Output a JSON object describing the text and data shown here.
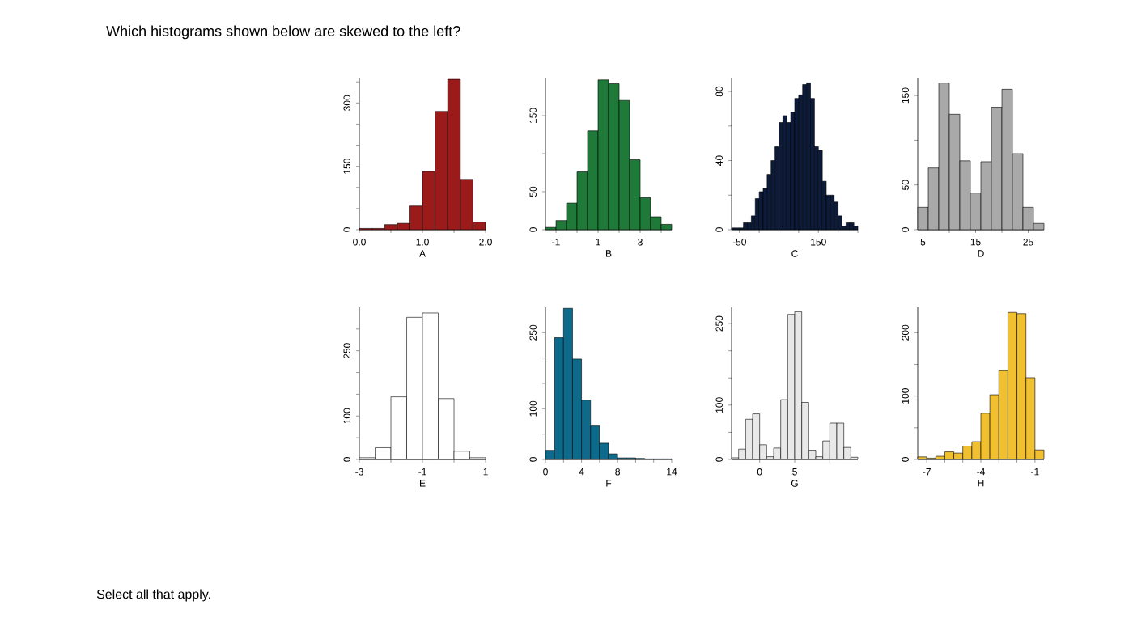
{
  "chart_data": [
    {
      "type": "histogram",
      "title": "Which histograms shown below are skewed to the left?",
      "annotations": [
        "Select all that apply."
      ],
      "xlabel": "A",
      "color": "#9b1b1b",
      "bins": [
        0,
        0.2,
        0.4,
        0.6,
        0.8,
        1.0,
        1.2,
        1.4,
        1.6,
        1.8,
        2.0
      ],
      "values": [
        3,
        3,
        12,
        15,
        56,
        138,
        280,
        356,
        119,
        18
      ],
      "xlim": [
        0,
        2
      ],
      "ylim": [
        0,
        360
      ],
      "xticks": [
        {
          "value": 0,
          "label": "0.0"
        },
        {
          "value": 0.5,
          "label": null
        },
        {
          "value": 1,
          "label": "1.0"
        },
        {
          "value": 1.5,
          "label": null
        },
        {
          "value": 2,
          "label": "2.0"
        }
      ],
      "yticks": [
        0,
        {
          "value": 50,
          "label": null
        },
        {
          "value": 100,
          "label": null
        },
        150,
        {
          "value": 200,
          "label": null
        },
        {
          "value": 250,
          "label": null
        },
        300,
        {
          "value": 350,
          "label": null
        }
      ]
    },
    {
      "type": "histogram",
      "xlabel": "B",
      "color": "#1f7a3a",
      "bins": [
        -1.5,
        -1,
        -0.5,
        0,
        0.5,
        1,
        1.5,
        2,
        2.5,
        3,
        3.5,
        4,
        4.5
      ],
      "values": [
        3,
        12,
        35,
        76,
        130,
        197,
        192,
        170,
        92,
        42,
        17,
        7
      ],
      "xlim": [
        -1.5,
        4.5
      ],
      "ylim": [
        0,
        200
      ],
      "xticks": [
        -1,
        {
          "value": 0,
          "label": null
        },
        1,
        {
          "value": 2,
          "label": null
        },
        3,
        {
          "value": 4,
          "label": null
        }
      ],
      "yticks": [
        0,
        50,
        {
          "value": 100,
          "label": null
        },
        150
      ]
    },
    {
      "type": "histogram",
      "xlabel": "C",
      "color": "#0d1b3a",
      "bins": [
        -70,
        -60,
        -50,
        -40,
        -30,
        -20,
        -10,
        0,
        10,
        20,
        30,
        40,
        50,
        60,
        70,
        80,
        90,
        100,
        110,
        120,
        130,
        140,
        150,
        160,
        170,
        180,
        190,
        200,
        210,
        220,
        230,
        240,
        250
      ],
      "values": [
        1,
        1,
        1,
        4,
        4,
        8,
        18,
        22,
        24,
        32,
        40,
        48,
        62,
        66,
        62,
        68,
        76,
        78,
        84,
        85,
        76,
        48,
        46,
        28,
        20,
        20,
        16,
        8,
        2,
        4,
        4,
        2
      ],
      "xlim": [
        -70,
        250
      ],
      "ylim": [
        0,
        88
      ],
      "xticks": [
        -50,
        {
          "value": 0,
          "label": null
        },
        {
          "value": 50,
          "label": null
        },
        {
          "value": 100,
          "label": null
        },
        150,
        {
          "value": 200,
          "label": null
        },
        {
          "value": 250,
          "label": null
        }
      ],
      "yticks": [
        0,
        {
          "value": 20,
          "label": null
        },
        40,
        {
          "value": 60,
          "label": null
        },
        80
      ]
    },
    {
      "type": "histogram",
      "xlabel": "D",
      "color": "#a9a9a9",
      "bins": [
        4,
        6,
        8,
        10,
        12,
        14,
        16,
        18,
        20,
        22,
        24,
        26,
        28
      ],
      "values": [
        25,
        69,
        164,
        129,
        77,
        41,
        76,
        137,
        157,
        85,
        25,
        7
      ],
      "xlim": [
        4,
        28
      ],
      "ylim": [
        0,
        170
      ],
      "xticks": [
        5,
        {
          "value": 10,
          "label": null
        },
        15,
        {
          "value": 20,
          "label": null
        },
        25
      ],
      "yticks": [
        0,
        50,
        {
          "value": 100,
          "label": null
        },
        150
      ]
    },
    {
      "type": "histogram",
      "xlabel": "E",
      "color": "#ffffff",
      "bins": [
        -3,
        -2.5,
        -2,
        -1.5,
        -1,
        -0.5,
        0,
        0.5,
        1
      ],
      "values": [
        4,
        27,
        144,
        327,
        337,
        140,
        19,
        4
      ],
      "xlim": [
        -3,
        1
      ],
      "ylim": [
        0,
        350
      ],
      "xticks": [
        -3,
        {
          "value": -2,
          "label": null
        },
        -1,
        {
          "value": 0,
          "label": null
        },
        1
      ],
      "yticks": [
        0,
        {
          "value": 50,
          "label": null
        },
        100,
        {
          "value": 150,
          "label": null
        },
        {
          "value": 200,
          "label": null
        },
        250,
        {
          "value": 300,
          "label": null
        }
      ]
    },
    {
      "type": "histogram",
      "xlabel": "F",
      "color": "#0e6a8a",
      "bins": [
        0,
        1,
        2,
        3,
        4,
        5,
        6,
        7,
        8,
        9,
        10,
        11,
        12,
        13,
        14
      ],
      "values": [
        18,
        240,
        298,
        198,
        117,
        66,
        32,
        11,
        3,
        3,
        2,
        1,
        1,
        1
      ],
      "xlim": [
        0,
        14
      ],
      "ylim": [
        0,
        300
      ],
      "xticks": [
        0,
        {
          "value": 2,
          "label": null
        },
        4,
        {
          "value": 6,
          "label": null
        },
        8,
        {
          "value": 10,
          "label": null
        },
        {
          "value": 12,
          "label": null
        },
        14
      ],
      "yticks": [
        0,
        {
          "value": 50,
          "label": null
        },
        100,
        {
          "value": 150,
          "label": null
        },
        {
          "value": 200,
          "label": null
        },
        250
      ]
    },
    {
      "type": "histogram",
      "xlabel": "G",
      "color": "#e8e8e8",
      "bins": [
        -4,
        -3,
        -2,
        -1,
        0,
        1,
        2,
        3,
        4,
        5,
        6,
        7,
        8,
        9,
        10,
        11,
        12,
        13,
        14
      ],
      "values": [
        3,
        19,
        74,
        84,
        27,
        5,
        21,
        110,
        267,
        272,
        105,
        17,
        5,
        34,
        67,
        67,
        22,
        4
      ],
      "xlim": [
        -4,
        14
      ],
      "ylim": [
        0,
        280
      ],
      "xticks": [
        0,
        5,
        {
          "value": 10,
          "label": null
        }
      ],
      "yticks": [
        0,
        {
          "value": 50,
          "label": null
        },
        100,
        {
          "value": 150,
          "label": null
        },
        {
          "value": 200,
          "label": null
        },
        250
      ]
    },
    {
      "type": "histogram",
      "xlabel": "H",
      "color": "#f0c030",
      "bins": [
        -7.5,
        -7,
        -6.5,
        -6,
        -5.5,
        -5,
        -4.5,
        -4,
        -3.5,
        -3,
        -2.5,
        -2,
        -1.5,
        -1,
        -0.5
      ],
      "values": [
        4,
        2,
        5,
        12,
        10,
        21,
        28,
        73,
        102,
        140,
        232,
        230,
        129,
        15
      ],
      "xlim": [
        -7.5,
        -0.5
      ],
      "ylim": [
        0,
        240
      ],
      "xticks": [
        -7,
        {
          "value": -6,
          "label": null
        },
        {
          "value": -5,
          "label": null
        },
        -4,
        {
          "value": -3,
          "label": null
        },
        {
          "value": -2,
          "label": null
        },
        -1
      ],
      "yticks": [
        0,
        {
          "value": 50,
          "label": null
        },
        100,
        {
          "value": 150,
          "label": null
        },
        200
      ]
    }
  ]
}
